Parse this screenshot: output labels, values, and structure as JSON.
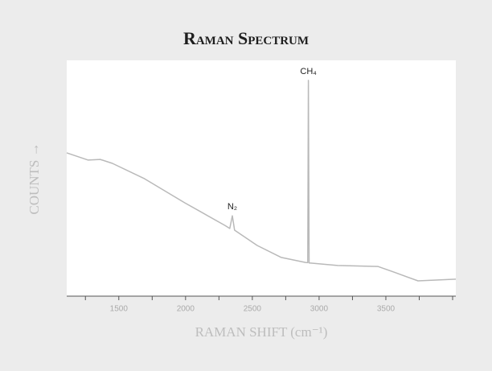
{
  "chart_data": {
    "type": "line",
    "title": "Raman Spectrum",
    "xlabel": "RAMAN SHIFT (cm⁻¹)",
    "ylabel": "COUNTS →",
    "x": [
      1110,
      1271,
      1361,
      1452,
      1693,
      1994,
      2295,
      2331,
      2350,
      2367,
      2536,
      2717,
      2898,
      2915,
      2920,
      2925,
      2946,
      3139,
      3440,
      3560,
      3741,
      4024
    ],
    "series": [
      {
        "color": "#b9b9b9",
        "values": [
          60.8,
          57.7,
          58.0,
          56.3,
          49.8,
          39.6,
          30.0,
          28.7,
          34.1,
          28.0,
          21.5,
          16.4,
          14.3,
          14.2,
          91.5,
          14.1,
          14.0,
          13.0,
          12.6,
          10.2,
          6.5,
          7.2
        ]
      }
    ],
    "xlim": [
      1110,
      4024
    ],
    "ylim": [
      0,
      100
    ],
    "xticks": [
      1500,
      2000,
      2500,
      3000,
      3500
    ],
    "xminor_ticks": [
      1250,
      1750,
      2250,
      2750,
      3250,
      3750,
      4000
    ],
    "annotations": [
      {
        "text": "N₂",
        "x": 2350,
        "y": 34.1
      },
      {
        "text": "CH₄",
        "x": 2920,
        "y": 91.5
      }
    ]
  }
}
